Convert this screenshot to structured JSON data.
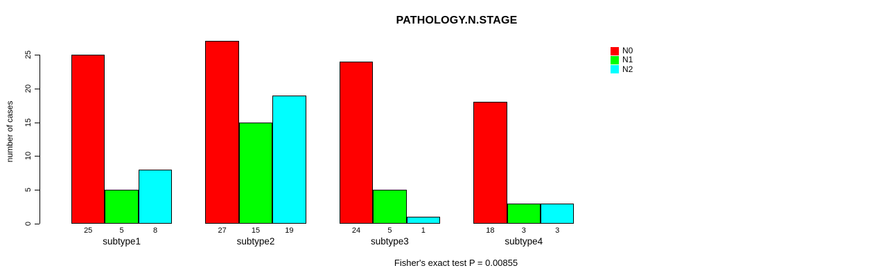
{
  "figure": {
    "title": "PATHOLOGY.N.STAGE",
    "caption": "Fisher's exact test P = 0.00855"
  },
  "chart_data": {
    "type": "bar",
    "title": "PATHOLOGY.N.STAGE",
    "categories": [
      "subtype1",
      "subtype2",
      "subtype3",
      "subtype4"
    ],
    "series": [
      {
        "name": "N0",
        "color": "#ff0000",
        "values": [
          25,
          27,
          24,
          18
        ]
      },
      {
        "name": "N1",
        "color": "#00ff00",
        "values": [
          5,
          15,
          5,
          3
        ]
      },
      {
        "name": "N2",
        "color": "#00ffff",
        "values": [
          8,
          19,
          1,
          3
        ]
      }
    ],
    "xlabel": "",
    "ylabel": "number of cases",
    "yticks": [
      0,
      5,
      10,
      15,
      20,
      25
    ],
    "ylim": [
      0,
      27
    ],
    "grid": false,
    "bar_value_labels": true,
    "bar_border_color": "#000000",
    "legend": {
      "position": "top-right",
      "entries": [
        "N0",
        "N1",
        "N2"
      ],
      "colors": [
        "#ff0000",
        "#00ff00",
        "#00ffff"
      ]
    },
    "annotation": "Fisher's exact test P = 0.00855"
  }
}
